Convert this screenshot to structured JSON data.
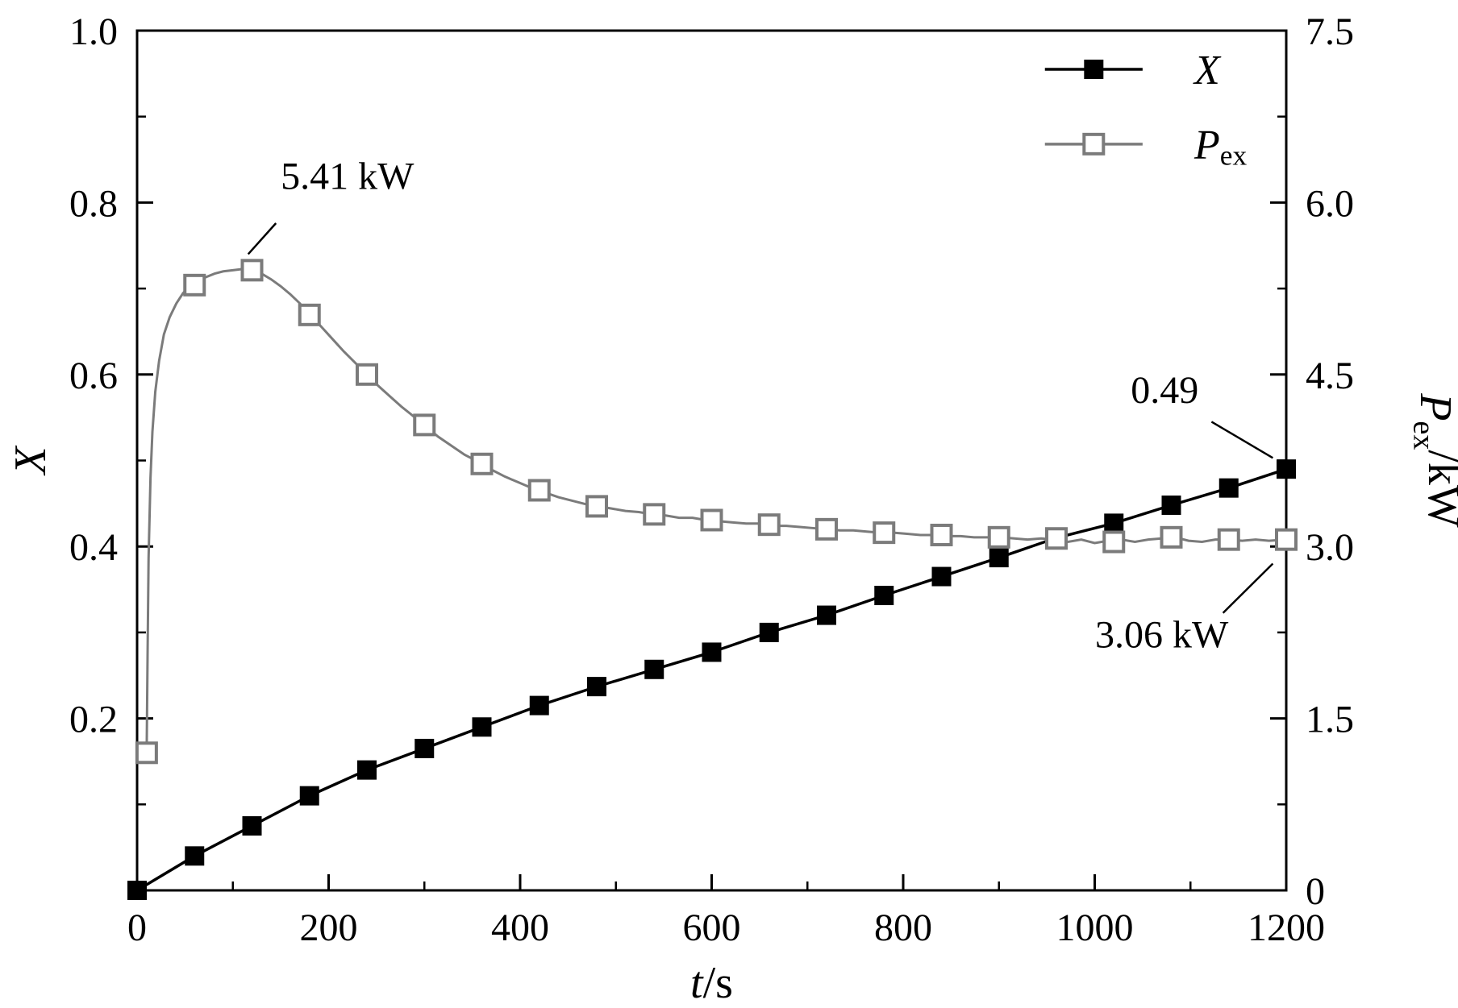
{
  "figure": {
    "background": "#ffffff",
    "frame_color": "#000000"
  },
  "chart_data": {
    "type": "line",
    "title": "",
    "grid": false,
    "legend_position": "top-right",
    "xlabel": {
      "main": "t",
      "rest": "/s"
    },
    "ylabel_left": {
      "main": "X",
      "sub": "",
      "rest": ""
    },
    "ylabel_right": {
      "main": "P",
      "sub": "ex",
      "rest": "/kW"
    },
    "xlim": [
      0,
      1200
    ],
    "ylim_left": [
      0,
      1.0
    ],
    "ylim_right": [
      0,
      7.5
    ],
    "x_major_ticks": [
      0,
      200,
      400,
      600,
      800,
      1000,
      1200
    ],
    "x_tick_labels": [
      "0",
      "200",
      "400",
      "600",
      "800",
      "1000",
      "1200"
    ],
    "x_minor_step": 100,
    "y_left_major_ticks": [
      0.2,
      0.4,
      0.6,
      0.8,
      1.0
    ],
    "y_left_tick_labels": [
      "0.2",
      "0.4",
      "0.6",
      "0.8",
      "1.0"
    ],
    "y_right_major_ticks": [
      0,
      1.5,
      3.0,
      4.5,
      6.0,
      7.5
    ],
    "y_right_tick_labels": [
      "0",
      "1.5",
      "3.0",
      "4.5",
      "6.0",
      "7.5"
    ],
    "series": [
      {
        "name": "X",
        "axis": "left",
        "color": "#000000",
        "marker": "filled-square",
        "points": [
          [
            0,
            0
          ],
          [
            60,
            0.04
          ],
          [
            120,
            0.075
          ],
          [
            180,
            0.11
          ],
          [
            240,
            0.14
          ],
          [
            300,
            0.165
          ],
          [
            360,
            0.19
          ],
          [
            420,
            0.215
          ],
          [
            480,
            0.237
          ],
          [
            540,
            0.257
          ],
          [
            600,
            0.277
          ],
          [
            660,
            0.3
          ],
          [
            720,
            0.32
          ],
          [
            780,
            0.343
          ],
          [
            840,
            0.365
          ],
          [
            900,
            0.387
          ],
          [
            960,
            0.41
          ],
          [
            1020,
            0.427
          ],
          [
            1080,
            0.448
          ],
          [
            1140,
            0.468
          ],
          [
            1200,
            0.49
          ]
        ]
      },
      {
        "name": "Pex",
        "axis": "right",
        "color": "#7b7b7b",
        "marker": "open-square",
        "marker_points": [
          [
            10,
            1.2
          ],
          [
            60,
            5.28
          ],
          [
            120,
            5.41
          ],
          [
            180,
            5.02
          ],
          [
            240,
            4.5
          ],
          [
            300,
            4.06
          ],
          [
            360,
            3.72
          ],
          [
            420,
            3.49
          ],
          [
            480,
            3.35
          ],
          [
            540,
            3.28
          ],
          [
            600,
            3.23
          ],
          [
            660,
            3.19
          ],
          [
            720,
            3.15
          ],
          [
            780,
            3.12
          ],
          [
            840,
            3.1
          ],
          [
            900,
            3.08
          ],
          [
            960,
            3.07
          ],
          [
            1020,
            3.04
          ],
          [
            1080,
            3.08
          ],
          [
            1140,
            3.06
          ],
          [
            1200,
            3.06
          ]
        ],
        "line_points": [
          [
            10,
            1.2
          ],
          [
            11,
            2.1
          ],
          [
            12,
            2.9
          ],
          [
            14,
            3.6
          ],
          [
            16,
            4.0
          ],
          [
            19,
            4.35
          ],
          [
            23,
            4.62
          ],
          [
            28,
            4.85
          ],
          [
            34,
            5.0
          ],
          [
            41,
            5.12
          ],
          [
            48,
            5.21
          ],
          [
            56,
            5.28
          ],
          [
            64,
            5.32
          ],
          [
            72,
            5.35
          ],
          [
            81,
            5.38
          ],
          [
            90,
            5.4
          ],
          [
            100,
            5.41
          ],
          [
            110,
            5.42
          ],
          [
            120,
            5.41
          ],
          [
            130,
            5.38
          ],
          [
            140,
            5.33
          ],
          [
            150,
            5.27
          ],
          [
            160,
            5.2
          ],
          [
            170,
            5.12
          ],
          [
            180,
            5.02
          ],
          [
            192,
            4.92
          ],
          [
            204,
            4.81
          ],
          [
            216,
            4.7
          ],
          [
            228,
            4.6
          ],
          [
            240,
            4.5
          ],
          [
            252,
            4.4
          ],
          [
            264,
            4.31
          ],
          [
            276,
            4.22
          ],
          [
            288,
            4.14
          ],
          [
            300,
            4.06
          ],
          [
            314,
            3.96
          ],
          [
            328,
            3.88
          ],
          [
            342,
            3.8
          ],
          [
            356,
            3.74
          ],
          [
            370,
            3.67
          ],
          [
            384,
            3.61
          ],
          [
            398,
            3.56
          ],
          [
            412,
            3.51
          ],
          [
            426,
            3.47
          ],
          [
            440,
            3.43
          ],
          [
            454,
            3.4
          ],
          [
            468,
            3.37
          ],
          [
            482,
            3.35
          ],
          [
            496,
            3.33
          ],
          [
            510,
            3.31
          ],
          [
            524,
            3.3
          ],
          [
            538,
            3.28
          ],
          [
            552,
            3.27
          ],
          [
            566,
            3.25
          ],
          [
            580,
            3.25
          ],
          [
            594,
            3.23
          ],
          [
            608,
            3.22
          ],
          [
            622,
            3.21
          ],
          [
            636,
            3.2
          ],
          [
            650,
            3.2
          ],
          [
            664,
            3.18
          ],
          [
            678,
            3.18
          ],
          [
            692,
            3.17
          ],
          [
            706,
            3.16
          ],
          [
            720,
            3.15
          ],
          [
            734,
            3.14
          ],
          [
            748,
            3.14
          ],
          [
            762,
            3.13
          ],
          [
            776,
            3.12
          ],
          [
            790,
            3.12
          ],
          [
            804,
            3.11
          ],
          [
            818,
            3.1
          ],
          [
            832,
            3.1
          ],
          [
            846,
            3.09
          ],
          [
            860,
            3.09
          ],
          [
            874,
            3.08
          ],
          [
            888,
            3.08
          ],
          [
            902,
            3.08
          ],
          [
            916,
            3.07
          ],
          [
            930,
            3.06
          ],
          [
            944,
            3.07
          ],
          [
            958,
            3.06
          ],
          [
            972,
            3.04
          ],
          [
            986,
            3.06
          ],
          [
            1000,
            3.03
          ],
          [
            1014,
            3.05
          ],
          [
            1028,
            3.06
          ],
          [
            1042,
            3.04
          ],
          [
            1056,
            3.06
          ],
          [
            1070,
            3.07
          ],
          [
            1084,
            3.08
          ],
          [
            1098,
            3.05
          ],
          [
            1112,
            3.04
          ],
          [
            1126,
            3.06
          ],
          [
            1140,
            3.06
          ],
          [
            1154,
            3.05
          ],
          [
            1168,
            3.06
          ],
          [
            1182,
            3.05
          ],
          [
            1200,
            3.06
          ]
        ]
      }
    ],
    "legend": [
      {
        "label_main": "X",
        "label_sub": "",
        "marker": "filled-square",
        "color": "#000000"
      },
      {
        "label_main": "P",
        "label_sub": "ex",
        "marker": "open-square",
        "color": "#7b7b7b"
      }
    ],
    "annotations": [
      {
        "text": "5.41 kW",
        "axis": "right",
        "text_t": 150,
        "text_v": 6.12,
        "anchor": "start",
        "line": [
          [
            145,
            5.82
          ],
          [
            116,
            5.55
          ]
        ]
      },
      {
        "text": "0.49",
        "axis": "left",
        "text_t": 1073,
        "text_v": 0.567,
        "anchor": "middle",
        "line": [
          [
            1122,
            0.545
          ],
          [
            1186,
            0.503
          ]
        ]
      },
      {
        "text": "3.06 kW",
        "axis": "right",
        "text_t": 1070,
        "text_v": 2.12,
        "anchor": "middle",
        "line": [
          [
            1134,
            2.42
          ],
          [
            1186,
            2.85
          ]
        ]
      }
    ]
  }
}
